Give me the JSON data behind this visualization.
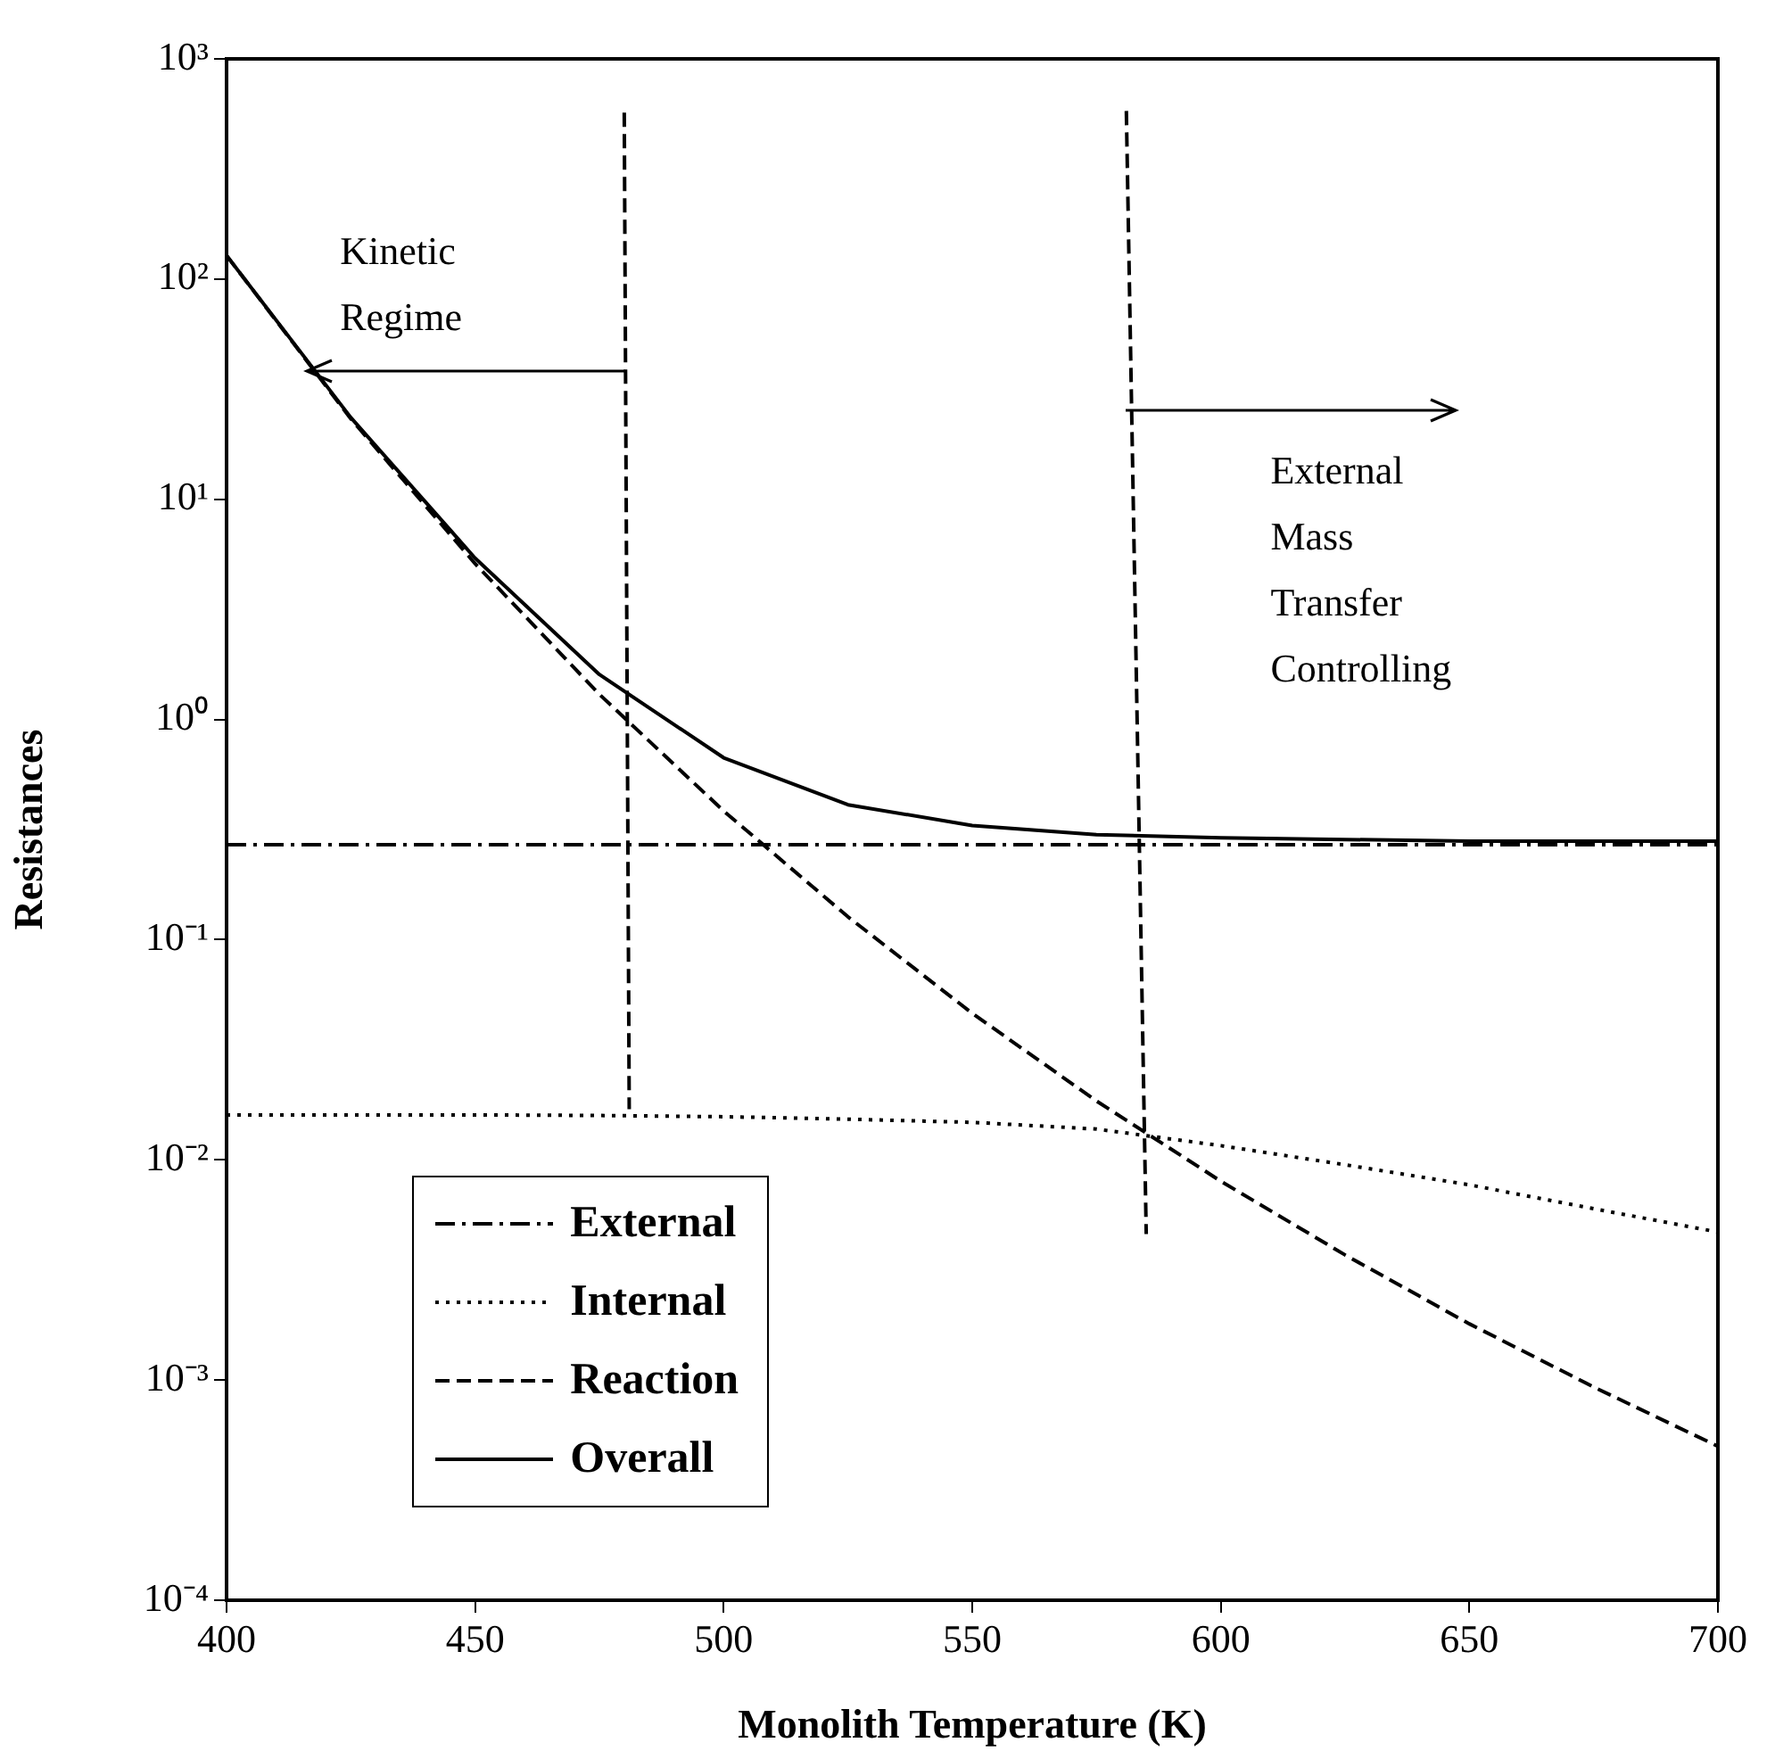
{
  "chart_data": {
    "type": "line",
    "xlabel": "Monolith Temperature (K)",
    "ylabel": "Resistances",
    "x": [
      400,
      425,
      450,
      475,
      500,
      525,
      550,
      575,
      600,
      625,
      650,
      675,
      700
    ],
    "series": [
      {
        "name": "External",
        "color": "#000000",
        "line_style": "dashdot",
        "values": [
          0.27,
          0.27,
          0.27,
          0.27,
          0.27,
          0.27,
          0.27,
          0.27,
          0.27,
          0.27,
          0.27,
          0.27,
          0.27
        ]
      },
      {
        "name": "Internal",
        "color": "#000000",
        "line_style": "dotted",
        "values": [
          0.016,
          0.016,
          0.016,
          0.0159,
          0.0157,
          0.0153,
          0.0148,
          0.0138,
          0.0116,
          0.0095,
          0.0077,
          0.006,
          0.0047
        ]
      },
      {
        "name": "Reaction",
        "color": "#000000",
        "line_style": "dashed",
        "values": [
          128,
          23.2,
          5.1,
          1.3,
          0.384,
          0.127,
          0.0463,
          0.0185,
          0.008,
          0.0037,
          0.0018,
          0.00093,
          0.0005
        ]
      },
      {
        "name": "Overall",
        "color": "#000000",
        "line_style": "solid",
        "values": [
          128,
          23.5,
          5.4,
          1.6,
          0.67,
          0.41,
          0.33,
          0.3,
          0.29,
          0.285,
          0.28,
          0.28,
          0.28
        ]
      },
      {
        "color": "#000000",
        "line_style": "dashed",
        "x": [
          480,
          481
        ],
        "values": [
          570,
          0.017
        ]
      },
      {
        "color": "#000000",
        "line_style": "dashed",
        "x": [
          581,
          585
        ],
        "values": [
          580,
          0.0046
        ]
      }
    ],
    "log": "y",
    "xlim": [
      400,
      700
    ],
    "xticks": [
      400,
      450,
      500,
      550,
      600,
      650,
      700
    ],
    "ylim": [
      0.0001,
      1000
    ],
    "yticks": [
      {
        "value": 1000,
        "label": "10³"
      },
      {
        "value": 100,
        "label": "10²"
      },
      {
        "value": 10,
        "label": "10¹"
      },
      {
        "value": 1,
        "label": "10⁰"
      },
      {
        "value": 0.1,
        "label": "10⁻¹"
      },
      {
        "value": 0.01,
        "label": "10⁻²"
      },
      {
        "value": 0.001,
        "label": "10⁻³"
      },
      {
        "value": 0.0001,
        "label": "10⁻⁴"
      }
    ],
    "grid": false,
    "legend": "bottom",
    "marker": "none",
    "annotations": [
      {
        "text": "Kinetic\nRegime",
        "x": 416,
        "y": 38
      },
      "External\nMass\nTransfer\nControlling"
    ]
  }
}
